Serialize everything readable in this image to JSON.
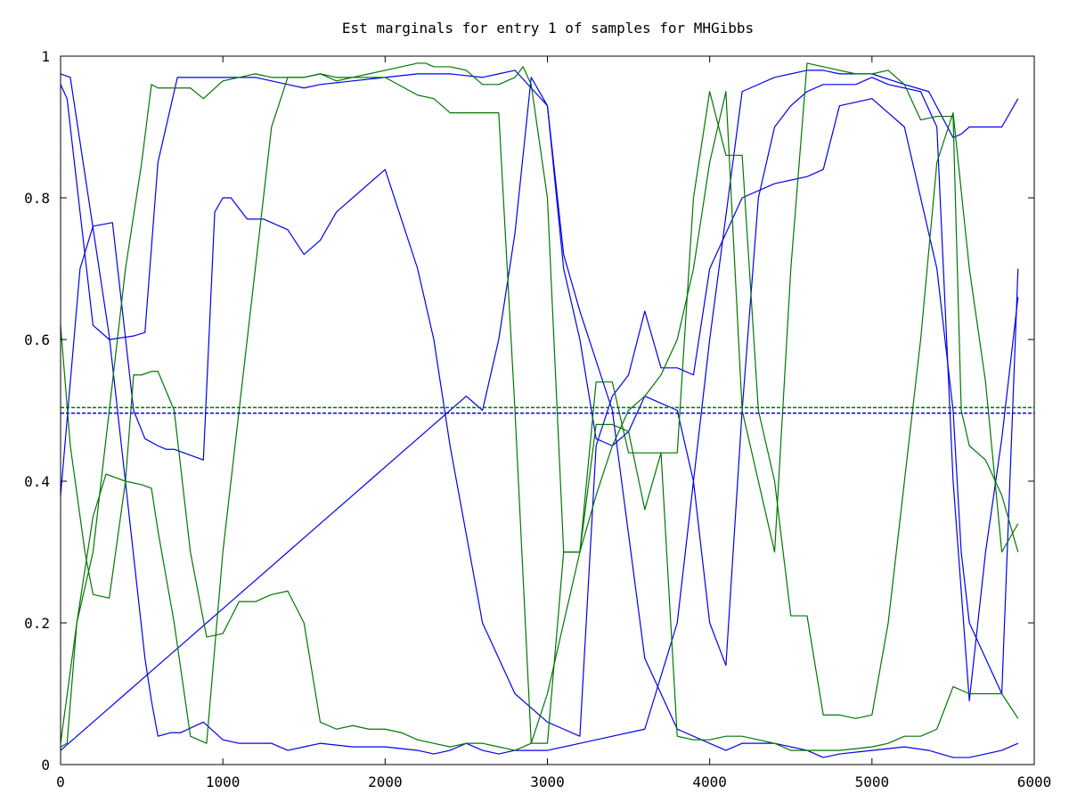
{
  "chart_data": {
    "type": "line",
    "title": "Est marginals for entry 1 of samples for MHGibbs",
    "xlabel": "",
    "ylabel": "",
    "xlim": [
      0,
      6000
    ],
    "ylim": [
      0,
      1
    ],
    "xticks": [
      0,
      1000,
      2000,
      3000,
      4000,
      5000,
      6000
    ],
    "xtick_labels": [
      "0",
      "1000",
      "2000",
      "3000",
      "4000",
      "5000",
      "6000"
    ],
    "yticks": [
      0,
      0.2,
      0.4,
      0.6,
      0.8,
      1
    ],
    "ytick_labels": [
      "0",
      "0.2",
      "0.4",
      "0.6",
      "0.8",
      "1"
    ],
    "grid": false,
    "legend": false,
    "colors": {
      "blue": "#0000ee",
      "green": "#007700",
      "axis": "#000000"
    },
    "reference_lines": [
      {
        "color": "green",
        "style": "dashed",
        "y": 0.504
      },
      {
        "color": "blue",
        "style": "dashed",
        "y": 0.496
      }
    ],
    "series": [
      {
        "color": "blue",
        "x": [
          0,
          60,
          300,
          520,
          560,
          600,
          680,
          740,
          880,
          1000,
          1100,
          1200,
          1300,
          1400,
          1500,
          1600,
          1800,
          2000,
          2200,
          2300,
          2400,
          2500,
          2600,
          2700,
          2800,
          3000,
          3200,
          3400,
          3600,
          3800,
          4000,
          4200,
          4400,
          4600,
          4700,
          4800,
          5000,
          5200,
          5350,
          5500,
          5550,
          5600,
          5800,
          5900
        ],
        "y": [
          0.975,
          0.97,
          0.605,
          0.15,
          0.09,
          0.04,
          0.045,
          0.045,
          0.06,
          0.035,
          0.03,
          0.03,
          0.03,
          0.02,
          0.025,
          0.03,
          0.025,
          0.025,
          0.02,
          0.015,
          0.02,
          0.03,
          0.02,
          0.015,
          0.02,
          0.02,
          0.03,
          0.04,
          0.05,
          0.2,
          0.6,
          0.95,
          0.97,
          0.98,
          0.98,
          0.975,
          0.975,
          0.96,
          0.95,
          0.885,
          0.89,
          0.9,
          0.9,
          0.94
        ]
      },
      {
        "color": "blue",
        "x": [
          0,
          40,
          200,
          300,
          450,
          520,
          600,
          720,
          760,
          880,
          1000,
          1200,
          1400,
          1500,
          1600,
          1800,
          2000,
          2200,
          2280,
          2400,
          2600,
          2700,
          2800,
          3000,
          3100,
          3200,
          3400,
          3600,
          3800,
          4000,
          4100,
          4200,
          4400,
          4600,
          4700,
          4800,
          5000,
          5200,
          5350,
          5500,
          5600,
          5800,
          5900
        ],
        "y": [
          0.96,
          0.94,
          0.62,
          0.6,
          0.605,
          0.61,
          0.85,
          0.97,
          0.97,
          0.97,
          0.97,
          0.97,
          0.96,
          0.955,
          0.96,
          0.965,
          0.97,
          0.975,
          0.975,
          0.975,
          0.97,
          0.975,
          0.98,
          0.93,
          0.72,
          0.64,
          0.5,
          0.15,
          0.05,
          0.03,
          0.02,
          0.03,
          0.03,
          0.02,
          0.01,
          0.015,
          0.02,
          0.025,
          0.02,
          0.01,
          0.01,
          0.02,
          0.03
        ]
      },
      {
        "color": "blue",
        "x": [
          0,
          120,
          200,
          320,
          450,
          520,
          600,
          650,
          700,
          760,
          880,
          950,
          1000,
          1050,
          1150,
          1250,
          1350,
          1400,
          1500,
          1600,
          1700,
          1800,
          1900,
          2000,
          2200,
          2300,
          2400,
          2600,
          2800,
          2900,
          3000,
          3100,
          3200,
          3300,
          3400,
          3500,
          3600,
          3700,
          3800,
          3900,
          4000,
          4200,
          4400,
          4600,
          4700,
          4800,
          5000,
          5200,
          5400,
          5500,
          5550,
          5600,
          5800,
          5900
        ],
        "y": [
          0.38,
          0.7,
          0.76,
          0.765,
          0.5,
          0.46,
          0.45,
          0.445,
          0.445,
          0.44,
          0.43,
          0.78,
          0.8,
          0.8,
          0.77,
          0.77,
          0.76,
          0.755,
          0.72,
          0.74,
          0.78,
          0.8,
          0.82,
          0.84,
          0.7,
          0.6,
          0.45,
          0.2,
          0.1,
          0.08,
          0.06,
          0.05,
          0.04,
          0.45,
          0.52,
          0.55,
          0.64,
          0.56,
          0.56,
          0.55,
          0.7,
          0.8,
          0.82,
          0.83,
          0.84,
          0.93,
          0.94,
          0.9,
          0.7,
          0.5,
          0.3,
          0.2,
          0.1,
          0.7
        ]
      },
      {
        "color": "blue",
        "x": [
          0,
          100,
          200,
          300,
          400,
          500,
          600,
          700,
          800,
          900,
          1000,
          1100,
          1200,
          1300,
          1400,
          1500,
          1600,
          1700,
          1800,
          1900,
          2000,
          2100,
          2200,
          2300,
          2400,
          2500,
          2600,
          2700,
          2800,
          2900,
          3000,
          3100,
          3200,
          3300,
          3400,
          3500,
          3600,
          3700,
          3800,
          3900,
          4000,
          4100,
          4200,
          4300,
          4400,
          4500,
          4600,
          4700,
          4800,
          4900,
          5000,
          5100,
          5200,
          5300,
          5400,
          5500,
          5600,
          5700,
          5800,
          5900
        ],
        "y": [
          0.02,
          0.04,
          0.06,
          0.08,
          0.1,
          0.12,
          0.14,
          0.16,
          0.18,
          0.2,
          0.22,
          0.24,
          0.26,
          0.28,
          0.3,
          0.32,
          0.34,
          0.36,
          0.38,
          0.4,
          0.42,
          0.44,
          0.46,
          0.48,
          0.5,
          0.52,
          0.5,
          0.6,
          0.75,
          0.97,
          0.93,
          0.7,
          0.6,
          0.46,
          0.45,
          0.47,
          0.52,
          0.51,
          0.5,
          0.4,
          0.2,
          0.14,
          0.5,
          0.8,
          0.9,
          0.93,
          0.95,
          0.96,
          0.96,
          0.96,
          0.97,
          0.96,
          0.955,
          0.95,
          0.9,
          0.4,
          0.09,
          0.3,
          0.46,
          0.66
        ]
      },
      {
        "color": "green",
        "x": [
          0,
          40,
          100,
          200,
          300,
          400,
          500,
          560,
          600,
          700,
          800,
          880,
          1000,
          1100,
          1200,
          1300,
          1400,
          1500,
          1600,
          1700,
          1800,
          1900,
          2000,
          2100,
          2200,
          2250,
          2300,
          2400,
          2500,
          2600,
          2700,
          2800,
          2850,
          2900,
          3000,
          3100,
          3200,
          3300,
          3400,
          3500,
          3600,
          3700,
          3800,
          3900,
          4000,
          4100,
          4200,
          4400,
          4500,
          4600,
          4700,
          4800,
          5000,
          5100,
          5200,
          5300,
          5400,
          5500,
          5600,
          5700,
          5800,
          5900
        ],
        "y": [
          0.025,
          0.03,
          0.2,
          0.3,
          0.5,
          0.7,
          0.85,
          0.96,
          0.955,
          0.955,
          0.955,
          0.94,
          0.965,
          0.97,
          0.975,
          0.97,
          0.97,
          0.97,
          0.975,
          0.97,
          0.97,
          0.975,
          0.98,
          0.985,
          0.99,
          0.99,
          0.985,
          0.985,
          0.98,
          0.96,
          0.96,
          0.97,
          0.985,
          0.96,
          0.8,
          0.3,
          0.3,
          0.54,
          0.54,
          0.44,
          0.44,
          0.44,
          0.04,
          0.035,
          0.035,
          0.04,
          0.04,
          0.03,
          0.02,
          0.02,
          0.02,
          0.02,
          0.025,
          0.03,
          0.04,
          0.04,
          0.05,
          0.11,
          0.1,
          0.1,
          0.1,
          0.065
        ]
      },
      {
        "color": "green",
        "x": [
          0,
          60,
          150,
          200,
          300,
          400,
          450,
          500,
          560,
          600,
          700,
          800,
          900,
          1000,
          1100,
          1200,
          1300,
          1400,
          1500,
          1600,
          1700,
          1800,
          1900,
          2000,
          2100,
          2200,
          2300,
          2400,
          2500,
          2600,
          2700,
          2800,
          2900,
          3000,
          3100,
          3200,
          3300,
          3400,
          3500,
          3600,
          3700,
          3800,
          3900,
          4000,
          4100,
          4200,
          4300,
          4400,
          4500,
          4600,
          4700,
          4800,
          4900,
          5000,
          5100,
          5200,
          5300,
          5400,
          5500,
          5600,
          5700,
          5800,
          5900
        ],
        "y": [
          0.62,
          0.45,
          0.3,
          0.24,
          0.235,
          0.4,
          0.55,
          0.55,
          0.555,
          0.555,
          0.5,
          0.3,
          0.18,
          0.185,
          0.23,
          0.23,
          0.24,
          0.245,
          0.2,
          0.06,
          0.05,
          0.055,
          0.05,
          0.05,
          0.045,
          0.035,
          0.03,
          0.025,
          0.03,
          0.03,
          0.025,
          0.02,
          0.03,
          0.03,
          0.3,
          0.3,
          0.48,
          0.48,
          0.47,
          0.36,
          0.44,
          0.44,
          0.8,
          0.95,
          0.86,
          0.86,
          0.5,
          0.4,
          0.21,
          0.21,
          0.07,
          0.07,
          0.065,
          0.07,
          0.2,
          0.4,
          0.6,
          0.85,
          0.92,
          0.7,
          0.54,
          0.3,
          0.34
        ]
      },
      {
        "color": "green",
        "x": [
          0,
          100,
          200,
          280,
          400,
          500,
          560,
          600,
          700,
          800,
          900,
          1000,
          1100,
          1200,
          1300,
          1400,
          1500,
          1600,
          1700,
          1800,
          2000,
          2200,
          2300,
          2400,
          2600,
          2700,
          2800,
          2900,
          3000,
          3100,
          3200,
          3300,
          3400,
          3500,
          3600,
          3700,
          3800,
          3900,
          4000,
          4100,
          4200,
          4300,
          4400,
          4500,
          4600,
          4700,
          4800,
          4900,
          5000,
          5100,
          5200,
          5300,
          5400,
          5500,
          5550,
          5600,
          5700,
          5800,
          5900
        ],
        "y": [
          0.03,
          0.2,
          0.35,
          0.41,
          0.4,
          0.395,
          0.39,
          0.33,
          0.2,
          0.04,
          0.03,
          0.3,
          0.5,
          0.7,
          0.9,
          0.97,
          0.97,
          0.975,
          0.965,
          0.97,
          0.97,
          0.945,
          0.94,
          0.92,
          0.92,
          0.92,
          0.5,
          0.03,
          0.1,
          0.2,
          0.3,
          0.38,
          0.45,
          0.5,
          0.52,
          0.55,
          0.6,
          0.7,
          0.85,
          0.95,
          0.5,
          0.4,
          0.3,
          0.7,
          0.99,
          0.985,
          0.98,
          0.975,
          0.975,
          0.98,
          0.96,
          0.91,
          0.915,
          0.915,
          0.5,
          0.45,
          0.43,
          0.38,
          0.3
        ]
      }
    ]
  }
}
